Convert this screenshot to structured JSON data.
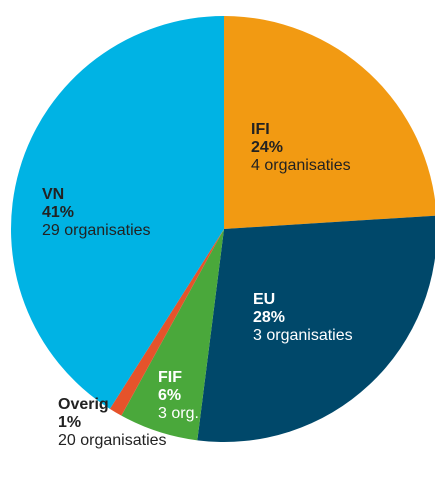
{
  "chart_data": {
    "type": "pie",
    "categories": [
      "IFI",
      "EU",
      "FIF",
      "Overig",
      "VN"
    ],
    "values": [
      24,
      28,
      6,
      1,
      41
    ],
    "value_labels": [
      "24%",
      "28%",
      "6%",
      "1%",
      "41%"
    ],
    "details": [
      "4 organisaties",
      "3 organisaties",
      "3 org.",
      "20 organisaties",
      "29 organisaties"
    ],
    "colors": [
      "#f29a12",
      "#00486a",
      "#4aa83b",
      "#e5532b",
      "#00b3e4"
    ]
  }
}
